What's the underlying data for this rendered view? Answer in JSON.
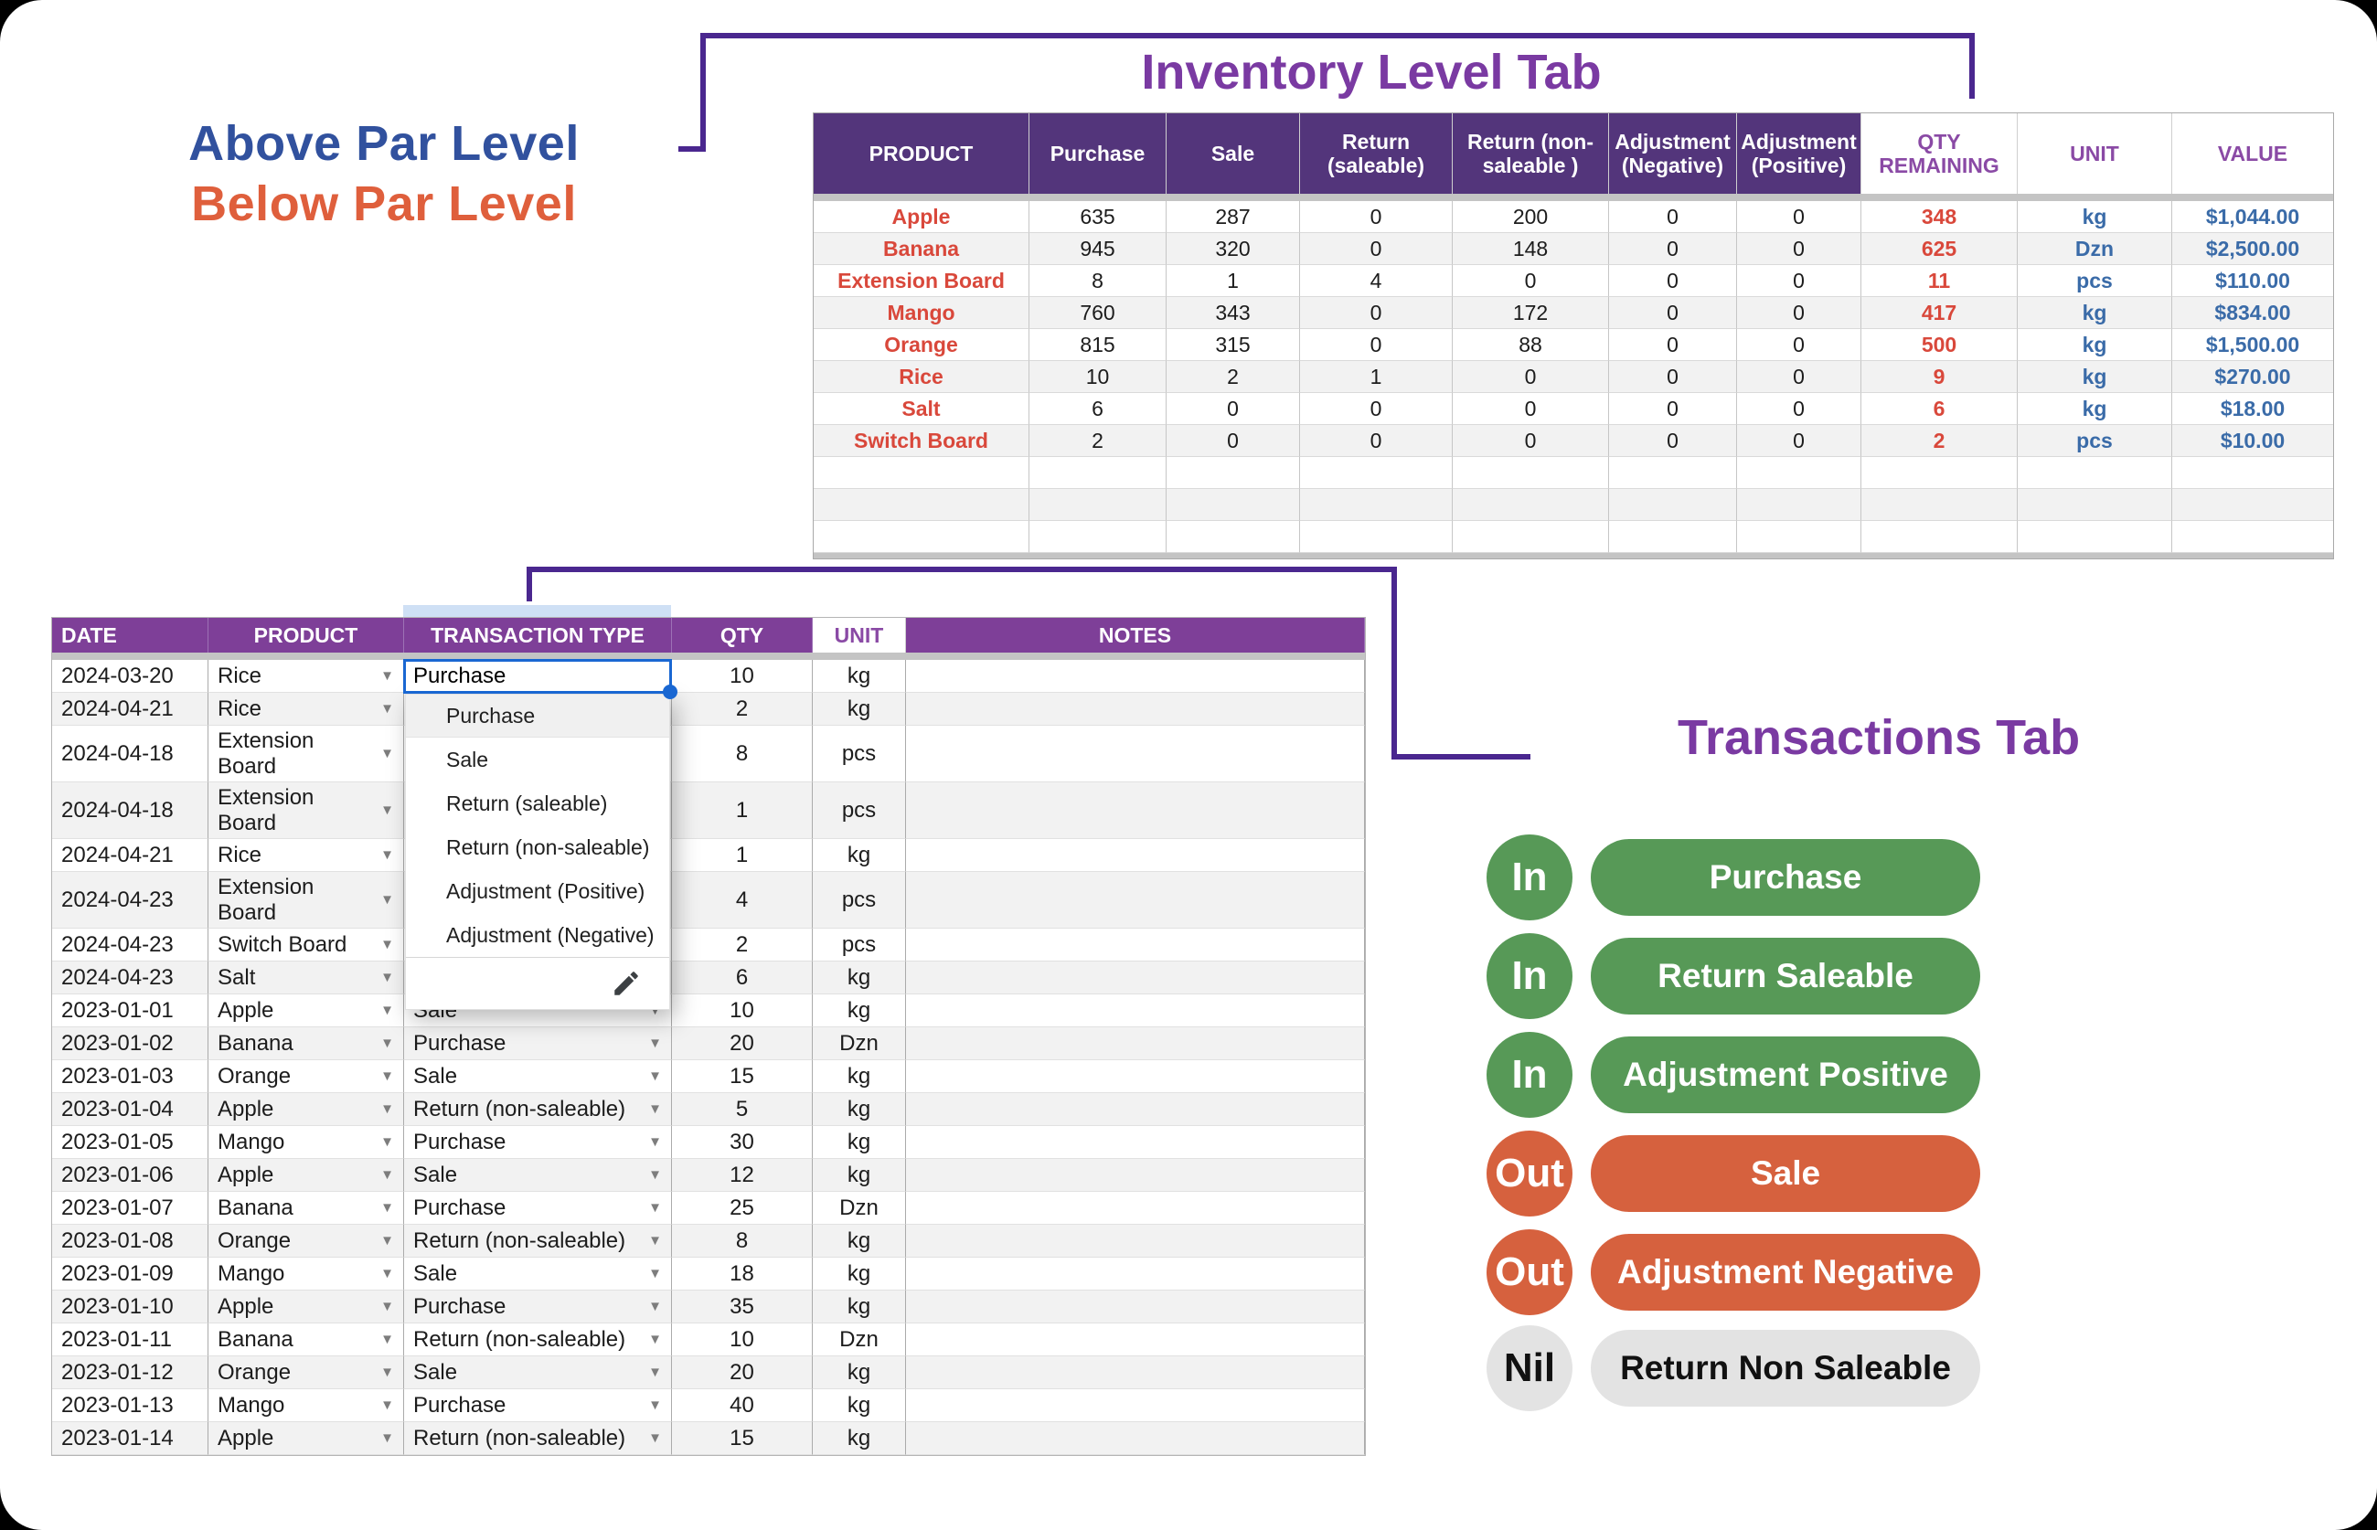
{
  "legend": {
    "above": "Above Par Level",
    "below": "Below Par Level"
  },
  "inventory": {
    "title": "Inventory Level Tab",
    "columns": [
      "PRODUCT",
      "Purchase",
      "Sale",
      "Return (saleable)",
      "Return (non-saleable )",
      "Adjustment (Negative)",
      "Adjustment (Positive)",
      "QTY REMAINING",
      "UNIT",
      "VALUE"
    ],
    "rows": [
      [
        "Apple",
        "635",
        "287",
        "0",
        "200",
        "0",
        "0",
        "348",
        "kg",
        "$1,044.00"
      ],
      [
        "Banana",
        "945",
        "320",
        "0",
        "148",
        "0",
        "0",
        "625",
        "Dzn",
        "$2,500.00"
      ],
      [
        "Extension Board",
        "8",
        "1",
        "4",
        "0",
        "0",
        "0",
        "11",
        "pcs",
        "$110.00"
      ],
      [
        "Mango",
        "760",
        "343",
        "0",
        "172",
        "0",
        "0",
        "417",
        "kg",
        "$834.00"
      ],
      [
        "Orange",
        "815",
        "315",
        "0",
        "88",
        "0",
        "0",
        "500",
        "kg",
        "$1,500.00"
      ],
      [
        "Rice",
        "10",
        "2",
        "1",
        "0",
        "0",
        "0",
        "9",
        "kg",
        "$270.00"
      ],
      [
        "Salt",
        "6",
        "0",
        "0",
        "0",
        "0",
        "0",
        "6",
        "kg",
        "$18.00"
      ],
      [
        "Switch Board",
        "2",
        "0",
        "0",
        "0",
        "0",
        "0",
        "2",
        "pcs",
        "$10.00"
      ]
    ],
    "empty_row_count": 3
  },
  "transactions": {
    "title": "Transactions Tab",
    "columns": [
      "DATE",
      "PRODUCT",
      "TRANSACTION TYPE",
      "QTY",
      "UNIT",
      "NOTES"
    ],
    "rows": [
      {
        "date": "2024-03-20",
        "product": "Rice",
        "type": "",
        "qty": "10",
        "unit": "kg",
        "tall": false
      },
      {
        "date": "2024-04-21",
        "product": "Rice",
        "type": "",
        "qty": "2",
        "unit": "kg",
        "tall": false
      },
      {
        "date": "2024-04-18",
        "product": "Extension Board",
        "type": "",
        "qty": "8",
        "unit": "pcs",
        "tall": true
      },
      {
        "date": "2024-04-18",
        "product": "Extension Board",
        "type": "",
        "qty": "1",
        "unit": "pcs",
        "tall": true
      },
      {
        "date": "2024-04-21",
        "product": "Rice",
        "type": "",
        "qty": "1",
        "unit": "kg",
        "tall": false
      },
      {
        "date": "2024-04-23",
        "product": "Extension Board",
        "type": "",
        "qty": "4",
        "unit": "pcs",
        "tall": true
      },
      {
        "date": "2024-04-23",
        "product": "Switch Board",
        "type": "",
        "qty": "2",
        "unit": "pcs",
        "tall": false
      },
      {
        "date": "2024-04-23",
        "product": "Salt",
        "type": "",
        "qty": "6",
        "unit": "kg",
        "tall": false
      },
      {
        "date": "2023-01-01",
        "product": "Apple",
        "type": "Sale",
        "qty": "10",
        "unit": "kg",
        "tall": false
      },
      {
        "date": "2023-01-02",
        "product": "Banana",
        "type": "Purchase",
        "qty": "20",
        "unit": "Dzn",
        "tall": false
      },
      {
        "date": "2023-01-03",
        "product": "Orange",
        "type": "Sale",
        "qty": "15",
        "unit": "kg",
        "tall": false
      },
      {
        "date": "2023-01-04",
        "product": "Apple",
        "type": "Return (non-saleable)",
        "qty": "5",
        "unit": "kg",
        "tall": false
      },
      {
        "date": "2023-01-05",
        "product": "Mango",
        "type": "Purchase",
        "qty": "30",
        "unit": "kg",
        "tall": false
      },
      {
        "date": "2023-01-06",
        "product": "Apple",
        "type": "Sale",
        "qty": "12",
        "unit": "kg",
        "tall": false
      },
      {
        "date": "2023-01-07",
        "product": "Banana",
        "type": "Purchase",
        "qty": "25",
        "unit": "Dzn",
        "tall": false
      },
      {
        "date": "2023-01-08",
        "product": "Orange",
        "type": "Return (non-saleable)",
        "qty": "8",
        "unit": "kg",
        "tall": false
      },
      {
        "date": "2023-01-09",
        "product": "Mango",
        "type": "Sale",
        "qty": "18",
        "unit": "kg",
        "tall": false
      },
      {
        "date": "2023-01-10",
        "product": "Apple",
        "type": "Purchase",
        "qty": "35",
        "unit": "kg",
        "tall": false
      },
      {
        "date": "2023-01-11",
        "product": "Banana",
        "type": "Return (non-saleable)",
        "qty": "10",
        "unit": "Dzn",
        "tall": false
      },
      {
        "date": "2023-01-12",
        "product": "Orange",
        "type": "Sale",
        "qty": "20",
        "unit": "kg",
        "tall": false
      },
      {
        "date": "2023-01-13",
        "product": "Mango",
        "type": "Purchase",
        "qty": "40",
        "unit": "kg",
        "tall": false
      },
      {
        "date": "2023-01-14",
        "product": "Apple",
        "type": "Return (non-saleable)",
        "qty": "15",
        "unit": "kg",
        "tall": false
      }
    ],
    "active_cell": {
      "value": "Purchase"
    },
    "dropdown": {
      "options": [
        "Purchase",
        "Sale",
        "Return (saleable)",
        "Return (non-saleable)",
        "Adjustment (Positive)",
        "Adjustment (Negative)"
      ],
      "highlighted": "Purchase",
      "edit_icon": "pencil-icon"
    }
  },
  "badges": [
    {
      "tag": "In",
      "label": "Purchase",
      "type": "in"
    },
    {
      "tag": "In",
      "label": "Return Saleable",
      "type": "in"
    },
    {
      "tag": "In",
      "label": "Adjustment Positive",
      "type": "in"
    },
    {
      "tag": "Out",
      "label": "Sale",
      "type": "out"
    },
    {
      "tag": "Out",
      "label": "Adjustment Negative",
      "type": "out"
    },
    {
      "tag": "Nil",
      "label": "Return Non Saleable",
      "type": "nil"
    }
  ],
  "colors": {
    "purple_dark": "#53357B",
    "purple_bright": "#7E3F98",
    "purple_text": "#8A4AA5",
    "title_purple": "#7A3AA2",
    "red_text": "#D9483B",
    "blue_text": "#3A6BA8",
    "legend_blue": "#31519E",
    "legend_orange": "#DF5F3C",
    "green": "#579957",
    "orange": "#D6613E",
    "nil_gray": "#E3E3E3",
    "connector": "#4A278F",
    "active_blue": "#1967D2",
    "strip_blue": "#CFE0F5",
    "row_alt": "#F2F2F2",
    "band_gray": "#C4C4C4"
  }
}
